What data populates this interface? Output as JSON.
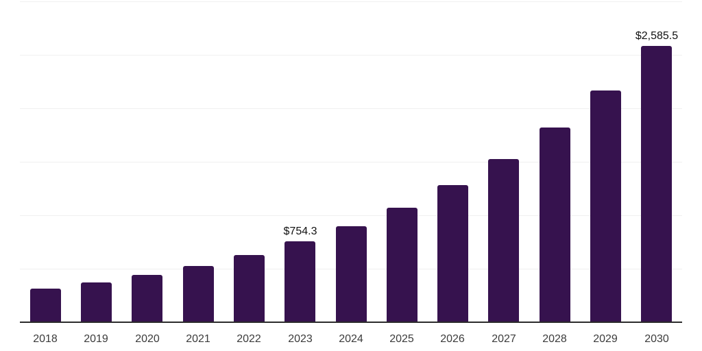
{
  "chart_data": {
    "type": "bar",
    "title": "",
    "xlabel": "",
    "ylabel": "",
    "categories": [
      "2018",
      "2019",
      "2020",
      "2021",
      "2022",
      "2023",
      "2024",
      "2025",
      "2026",
      "2027",
      "2028",
      "2029",
      "2030"
    ],
    "values": [
      311,
      371,
      442,
      527,
      629,
      754.3,
      899.4,
      1072,
      1279,
      1525,
      1818,
      2168,
      2585.5
    ],
    "data_labels": [
      "",
      "",
      "",
      "",
      "",
      "$754.3",
      "",
      "",
      "",
      "",
      "",
      "",
      "$2,585.5"
    ],
    "ylim": [
      0,
      3000
    ],
    "gridline_step": 500,
    "grid": true,
    "legend": "none",
    "y_axis_labels_visible": false,
    "colors": {
      "bar": "#36124E",
      "gridline": "#F0F0F0",
      "axis_line": "#2B2B2B",
      "tick_label": "#3B3B3B",
      "data_label": "#111111",
      "background": "#FFFFFF"
    }
  }
}
